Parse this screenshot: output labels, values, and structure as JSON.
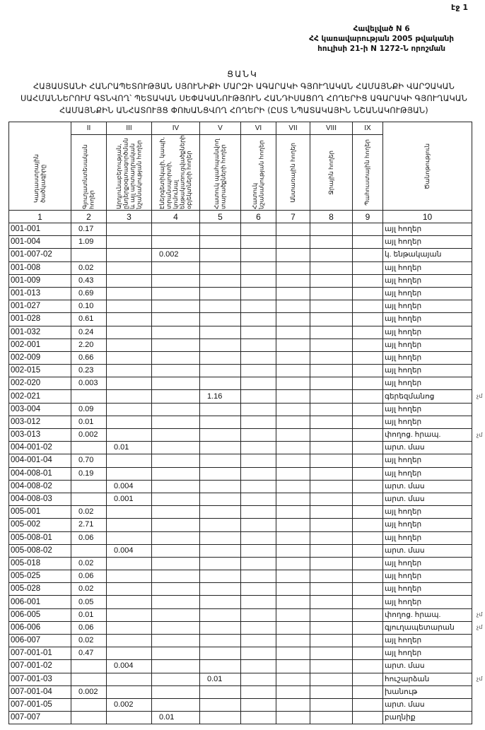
{
  "page_label": "էջ 1",
  "annex": {
    "line1": "Հավելված N 6",
    "line2": "ՀՀ կառավարության 2005 թվականի",
    "line3": "հուլիսի 21-ի N 1272-Ն որոշման"
  },
  "heading": "ՑԱՆԿ",
  "title": "ՀԱՅԱՍՏԱՆԻ ՀԱՆՐԱՊԵՏՈՒԹՅԱՆ ՍՅՈՒՆԻՔԻ ՄԱՐԶԻ ԱԳԱՐԱԿԻ ԳՅՈՒՂԱԿԱՆ ՀԱՄԱՅՆՔԻ ՎԱՐՉԱԿԱՆ ՍԱՀՄԱՆՆԵՐՈՒՄ ԳՏՆՎՈՂ՝ ՊԵՏԱԿԱՆ ՍԵՓԱԿԱՆՈՒԹՅՈՒՆ ՀԱՆԴԻՍԱՑՈՂ ՀՈՂԵՐԻՑ ԱԳԱՐԱԿԻ ԳՅՈՒՂԱԿԱՆ ՀԱՄԱՅՆՔԻՆ ԱՆՀԱՏՈՒՅՑ ՓՈԽԱՆՑՎՈՂ ՀՈՂԵՐԻ (ԸՍՏ ՆՊԱՏԱԿԱՅԻՆ ՆՇԱՆԱԿՈՒԹՅԱՆ)",
  "table": {
    "roman": [
      "",
      "II",
      "III",
      "IV",
      "V",
      "VI",
      "VII",
      "VIII",
      "IX",
      ""
    ],
    "headers": [
      "Կադաստրային ծածկագիրը",
      "Գյուղատնտեսական հողեր",
      "Արդյունաբերության, ընդերքօգտագործման և այլ արտադրական նշանակության հողեր",
      "Էներգետիկայի, կապի, տրանսպորտի, կոմունալ ենթակառուցվածքների օբյեկտների հողեր",
      "Հատուկ պահպանվող տարածքների հողեր",
      "Հատուկ նշանակության հողեր",
      "Անտառային հողեր",
      "Ջրային հողեր",
      "Պահուստային հողեր",
      "Ծանոթություն"
    ],
    "numbers": [
      "1",
      "2",
      "3",
      "4",
      "5",
      "6",
      "7",
      "8",
      "9",
      "10"
    ],
    "rows": [
      {
        "code": "001-001",
        "cells": [
          "0.17",
          "",
          "",
          "",
          "",
          "",
          "",
          ""
        ],
        "note": "այլ հողեր",
        "mark": ""
      },
      {
        "code": "001-004",
        "cells": [
          "1.09",
          "",
          "",
          "",
          "",
          "",
          "",
          ""
        ],
        "note": "այլ հողեր",
        "mark": ""
      },
      {
        "code": "001-007-02",
        "cells": [
          "",
          "",
          "0.002",
          "",
          "",
          "",
          "",
          ""
        ],
        "note": "կ. ենթակայան",
        "mark": ""
      },
      {
        "code": "001-008",
        "cells": [
          "0.02",
          "",
          "",
          "",
          "",
          "",
          "",
          ""
        ],
        "note": "այլ հողեր",
        "mark": ""
      },
      {
        "code": "001-009",
        "cells": [
          "0.43",
          "",
          "",
          "",
          "",
          "",
          "",
          ""
        ],
        "note": "այլ հողեր",
        "mark": ""
      },
      {
        "code": "001-013",
        "cells": [
          "0.69",
          "",
          "",
          "",
          "",
          "",
          "",
          ""
        ],
        "note": "այլ հողեր",
        "mark": ""
      },
      {
        "code": "001-027",
        "cells": [
          "0.10",
          "",
          "",
          "",
          "",
          "",
          "",
          ""
        ],
        "note": "այլ հողեր",
        "mark": ""
      },
      {
        "code": "001-028",
        "cells": [
          "0.61",
          "",
          "",
          "",
          "",
          "",
          "",
          ""
        ],
        "note": "այլ հողեր",
        "mark": ""
      },
      {
        "code": "001-032",
        "cells": [
          "0.24",
          "",
          "",
          "",
          "",
          "",
          "",
          ""
        ],
        "note": "այլ հողեր",
        "mark": ""
      },
      {
        "code": "002-001",
        "cells": [
          "2.20",
          "",
          "",
          "",
          "",
          "",
          "",
          ""
        ],
        "note": "այլ հողեր",
        "mark": ""
      },
      {
        "code": "002-009",
        "cells": [
          "0.66",
          "",
          "",
          "",
          "",
          "",
          "",
          ""
        ],
        "note": "այլ հողեր",
        "mark": ""
      },
      {
        "code": "002-015",
        "cells": [
          "0.23",
          "",
          "",
          "",
          "",
          "",
          "",
          ""
        ],
        "note": "այլ հողեր",
        "mark": ""
      },
      {
        "code": "002-020",
        "cells": [
          "0.003",
          "",
          "",
          "",
          "",
          "",
          "",
          ""
        ],
        "note": "այլ հողեր",
        "mark": ""
      },
      {
        "code": "002-021",
        "cells": [
          "",
          "",
          "",
          "1.16",
          "",
          "",
          "",
          ""
        ],
        "note": "գերեզմանոց",
        "mark": "չմ"
      },
      {
        "code": "003-004",
        "cells": [
          "0.09",
          "",
          "",
          "",
          "",
          "",
          "",
          ""
        ],
        "note": "այլ հողեր",
        "mark": ""
      },
      {
        "code": "003-012",
        "cells": [
          "0.01",
          "",
          "",
          "",
          "",
          "",
          "",
          ""
        ],
        "note": "այլ հողեր",
        "mark": ""
      },
      {
        "code": "003-013",
        "cells": [
          "0.002",
          "",
          "",
          "",
          "",
          "",
          "",
          ""
        ],
        "note": "փողոց. հրապ.",
        "mark": "չմ"
      },
      {
        "code": "004-001-02",
        "cells": [
          "",
          "0.01",
          "",
          "",
          "",
          "",
          "",
          ""
        ],
        "note": "արտ. մաս",
        "mark": ""
      },
      {
        "code": "004-001-04",
        "cells": [
          "0.70",
          "",
          "",
          "",
          "",
          "",
          "",
          ""
        ],
        "note": "այլ հողեր",
        "mark": ""
      },
      {
        "code": "004-008-01",
        "cells": [
          "0.19",
          "",
          "",
          "",
          "",
          "",
          "",
          ""
        ],
        "note": "այլ հողեր",
        "mark": ""
      },
      {
        "code": "004-008-02",
        "cells": [
          "",
          "0.004",
          "",
          "",
          "",
          "",
          "",
          ""
        ],
        "note": "արտ. մաս",
        "mark": ""
      },
      {
        "code": "004-008-03",
        "cells": [
          "",
          "0.001",
          "",
          "",
          "",
          "",
          "",
          ""
        ],
        "note": "արտ. մաս",
        "mark": ""
      },
      {
        "code": "005-001",
        "cells": [
          "0.02",
          "",
          "",
          "",
          "",
          "",
          "",
          ""
        ],
        "note": "այլ հողեր",
        "mark": ""
      },
      {
        "code": "005-002",
        "cells": [
          "2.71",
          "",
          "",
          "",
          "",
          "",
          "",
          ""
        ],
        "note": "այլ հողեր",
        "mark": ""
      },
      {
        "code": "005-008-01",
        "cells": [
          "0.06",
          "",
          "",
          "",
          "",
          "",
          "",
          ""
        ],
        "note": "այլ հողեր",
        "mark": ""
      },
      {
        "code": "005-008-02",
        "cells": [
          "",
          "0.004",
          "",
          "",
          "",
          "",
          "",
          ""
        ],
        "note": "արտ. մաս",
        "mark": ""
      },
      {
        "code": "005-018",
        "cells": [
          "0.02",
          "",
          "",
          "",
          "",
          "",
          "",
          ""
        ],
        "note": "այլ հողեր",
        "mark": ""
      },
      {
        "code": "005-025",
        "cells": [
          "0.06",
          "",
          "",
          "",
          "",
          "",
          "",
          ""
        ],
        "note": "այլ հողեր",
        "mark": ""
      },
      {
        "code": "005-028",
        "cells": [
          "0.02",
          "",
          "",
          "",
          "",
          "",
          "",
          ""
        ],
        "note": "այլ հողեր",
        "mark": ""
      },
      {
        "code": "006-001",
        "cells": [
          "0.05",
          "",
          "",
          "",
          "",
          "",
          "",
          ""
        ],
        "note": "այլ հողեր",
        "mark": ""
      },
      {
        "code": "006-005",
        "cells": [
          "0.01",
          "",
          "",
          "",
          "",
          "",
          "",
          ""
        ],
        "note": "փողոց. հրապ.",
        "mark": "չմ"
      },
      {
        "code": "006-006",
        "cells": [
          "0.06",
          "",
          "",
          "",
          "",
          "",
          "",
          ""
        ],
        "note": "գյուղապետարան",
        "mark": "չմ"
      },
      {
        "code": "006-007",
        "cells": [
          "0.02",
          "",
          "",
          "",
          "",
          "",
          "",
          ""
        ],
        "note": "այլ հողեր",
        "mark": ""
      },
      {
        "code": "007-001-01",
        "cells": [
          "0.47",
          "",
          "",
          "",
          "",
          "",
          "",
          ""
        ],
        "note": "այլ հողեր",
        "mark": ""
      },
      {
        "code": "007-001-02",
        "cells": [
          "",
          "0.004",
          "",
          "",
          "",
          "",
          "",
          ""
        ],
        "note": "արտ. մաս",
        "mark": ""
      },
      {
        "code": "007-001-03",
        "cells": [
          "",
          "",
          "",
          "0.01",
          "",
          "",
          "",
          ""
        ],
        "note": "հուշարձան",
        "mark": "չմ"
      },
      {
        "code": "007-001-04",
        "cells": [
          "0.002",
          "",
          "",
          "",
          "",
          "",
          "",
          ""
        ],
        "note": "խանութ",
        "mark": ""
      },
      {
        "code": "007-001-05",
        "cells": [
          "",
          "0.002",
          "",
          "",
          "",
          "",
          "",
          ""
        ],
        "note": "արտ. մաս",
        "mark": ""
      },
      {
        "code": "007-007",
        "cells": [
          "",
          "",
          "0.01",
          "",
          "",
          "",
          "",
          ""
        ],
        "note": "բաղնիք",
        "mark": ""
      }
    ]
  }
}
